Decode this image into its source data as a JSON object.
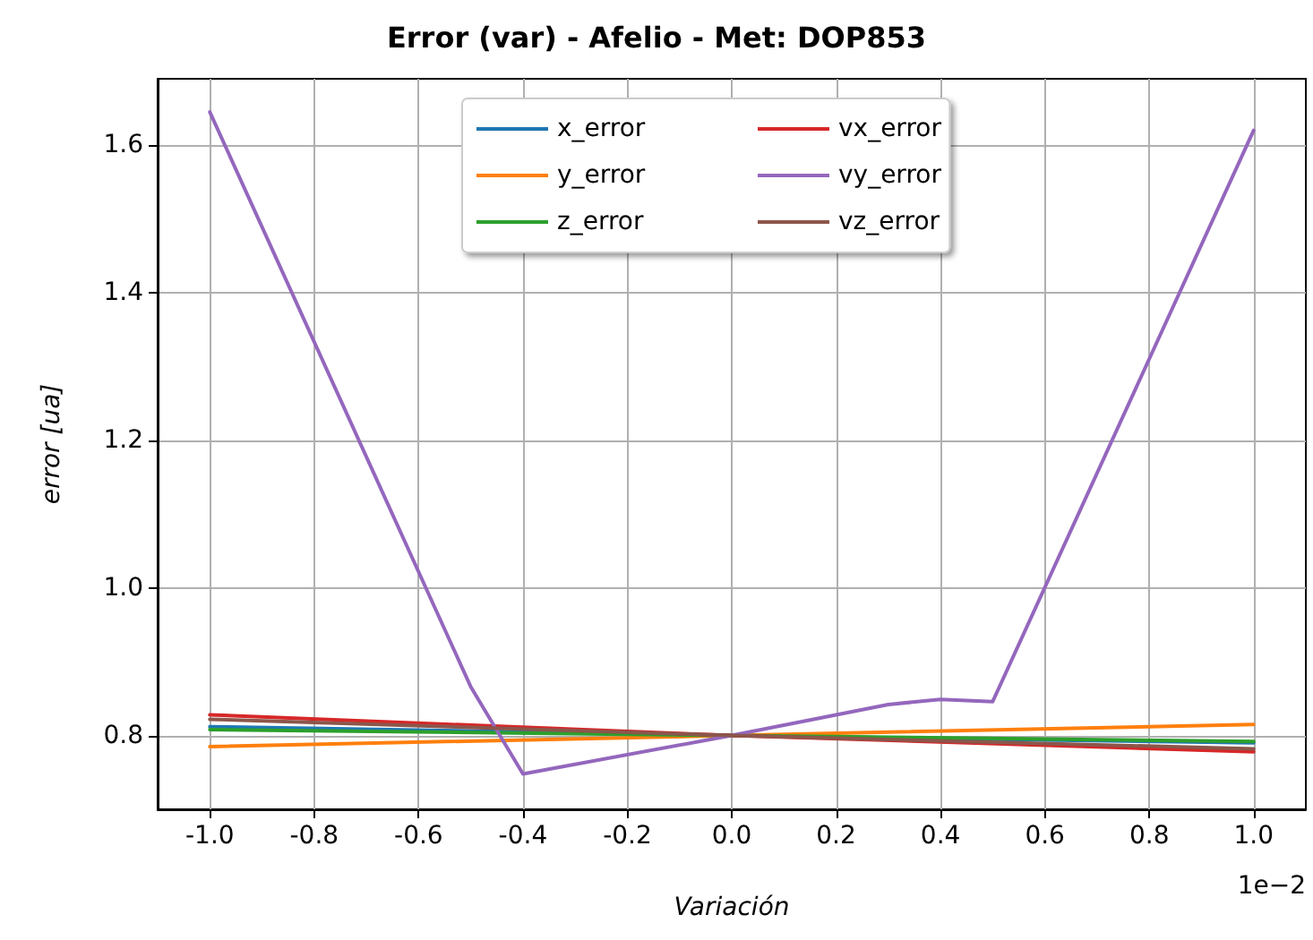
{
  "chart_data": {
    "type": "line",
    "title": "Error (var) - Afelio - Met: DOP853",
    "xlabel": "Variación",
    "ylabel": "error [ua]",
    "annotations": [
      "1e−2"
    ],
    "series": [
      {
        "name": "x_error",
        "color": "#1f77b4",
        "x": [
          -1.0,
          0.0,
          1.0
        ],
        "values": [
          0.812,
          0.8,
          0.79
        ]
      },
      {
        "name": "y_error",
        "color": "#ff7f0e",
        "x": [
          -1.0,
          0.0,
          1.0
        ],
        "values": [
          0.785,
          0.8,
          0.815
        ]
      },
      {
        "name": "z_error",
        "color": "#2ca02c",
        "x": [
          -1.0,
          0.0,
          1.0
        ],
        "values": [
          0.808,
          0.8,
          0.792
        ]
      },
      {
        "name": "vx_error",
        "color": "#d62728",
        "x": [
          -1.0,
          0.0,
          1.0
        ],
        "values": [
          0.828,
          0.8,
          0.778
        ]
      },
      {
        "name": "vy_error",
        "color": "#9467bd",
        "x": [
          -1.0,
          -0.5,
          -0.4,
          0.0,
          0.3,
          0.4,
          0.5,
          1.0
        ],
        "values": [
          1.645,
          0.866,
          0.748,
          0.8,
          0.842,
          0.849,
          0.846,
          1.62
        ]
      },
      {
        "name": "vz_error",
        "color": "#8c564b",
        "x": [
          -1.0,
          0.0,
          1.0
        ],
        "values": [
          0.822,
          0.8,
          0.782
        ]
      }
    ],
    "xlim": [
      -1.1,
      1.1
    ],
    "xticks": [
      {
        "value": -1.0,
        "label": "-1.0"
      },
      -0.8,
      -0.6,
      -0.4,
      -0.2,
      {
        "value": 0.0,
        "label": "0.0"
      },
      0.2,
      0.4,
      0.6,
      0.8,
      {
        "value": 1.0,
        "label": "1.0"
      }
    ],
    "ylim": [
      0.7,
      1.69
    ],
    "yticks": [
      0.8,
      {
        "value": 1.0,
        "label": "1.0"
      },
      1.2,
      1.4,
      1.6
    ],
    "grid": true,
    "legend": "top",
    "marker": "none",
    "line_style": "solid"
  }
}
